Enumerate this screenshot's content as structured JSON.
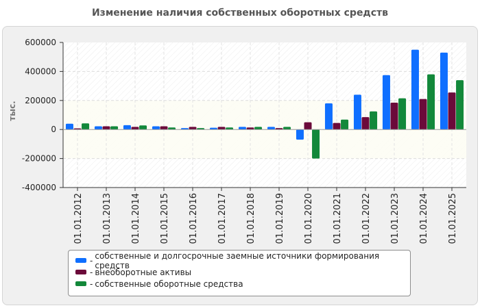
{
  "chart_data": {
    "type": "bar",
    "title": "Изменение наличия собственных оборотных средств",
    "xlabel": "",
    "ylabel": "тыс.",
    "ylim": [
      -400000,
      600000
    ],
    "yticks": [
      600000,
      400000,
      200000,
      0,
      -200000,
      -400000
    ],
    "ytick_labels": [
      "600000",
      "400000",
      "200000",
      "0",
      "-200000",
      "-400000"
    ],
    "grid": true,
    "legend_position": "bottom",
    "categories": [
      "01.01.2012",
      "01.01.2013",
      "01.01.2014",
      "01.01.2015",
      "01.01.2016",
      "01.01.2017",
      "01.01.2018",
      "01.01.2019",
      "01.01.2020",
      "01.01.2021",
      "01.01.2022",
      "01.01.2023",
      "01.01.2024",
      "01.01.2025"
    ],
    "series": [
      {
        "name": "собственные и долгосрочные заемные источники формирования средств",
        "color": "#0f6fff",
        "values": [
          40000,
          22000,
          30000,
          22000,
          10000,
          12000,
          18000,
          18000,
          -70000,
          180000,
          240000,
          375000,
          550000,
          530000
        ]
      },
      {
        "name": "внеоборотные активы",
        "color": "#6b0a3a",
        "values": [
          8000,
          22000,
          18000,
          22000,
          18000,
          18000,
          14000,
          10000,
          50000,
          45000,
          85000,
          185000,
          210000,
          255000
        ]
      },
      {
        "name": "собственные оборотные средства",
        "color": "#12883a",
        "values": [
          42000,
          22000,
          28000,
          14000,
          10000,
          14000,
          18000,
          18000,
          -200000,
          68000,
          125000,
          215000,
          380000,
          340000
        ]
      }
    ]
  }
}
